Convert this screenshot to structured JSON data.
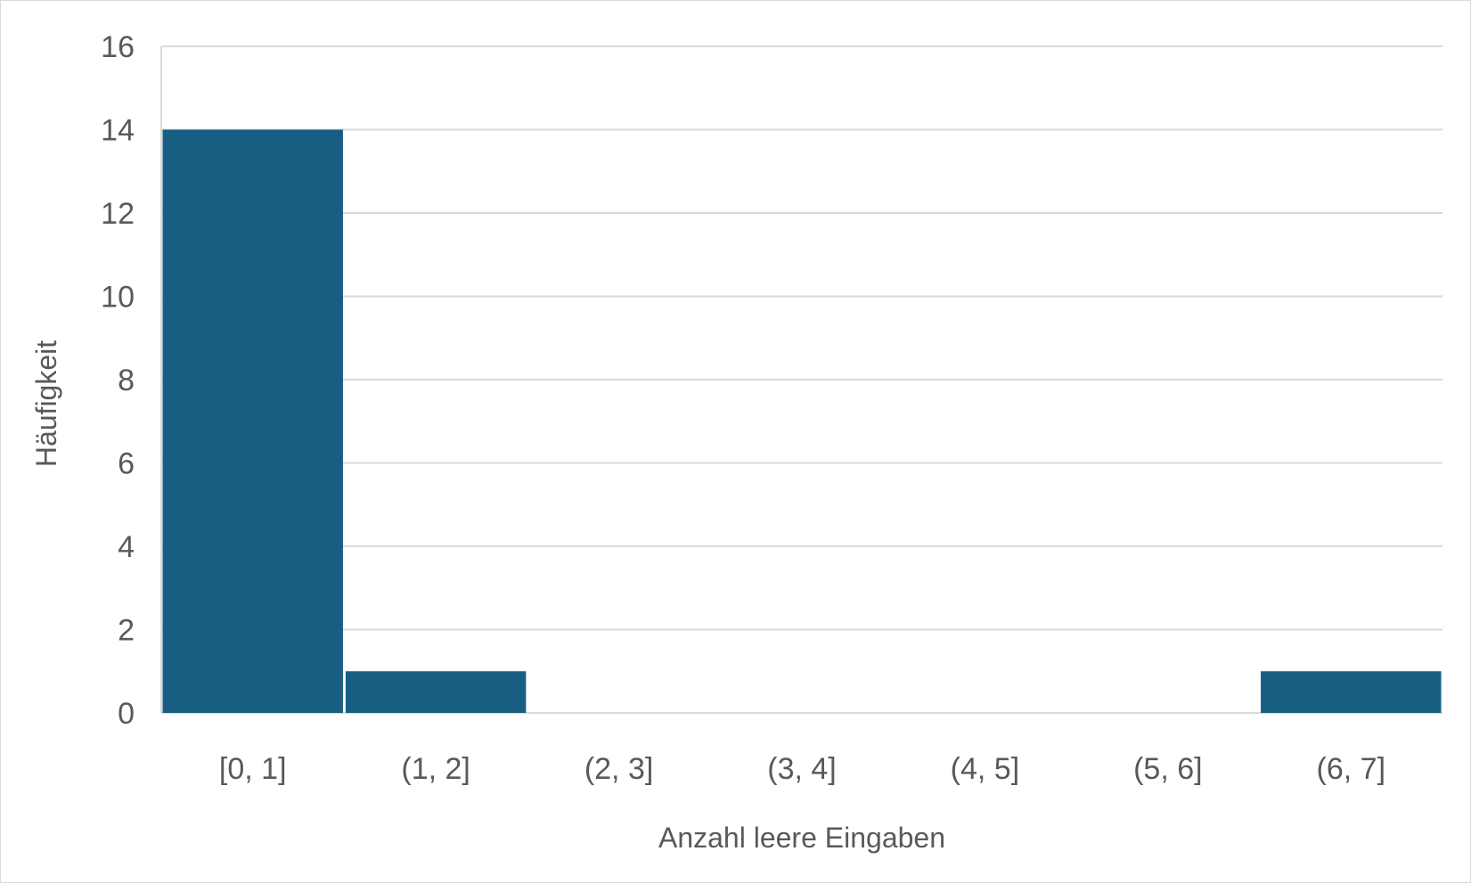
{
  "chart_data": {
    "type": "bar",
    "title": "",
    "xlabel": "Anzahl leere Eingaben",
    "ylabel": "Häufigkeit",
    "categories": [
      "[0, 1]",
      "(1, 2]",
      "(2, 3]",
      "(3, 4]",
      "(4, 5]",
      "(5, 6]",
      "(6, 7]"
    ],
    "values": [
      14,
      1,
      0,
      0,
      0,
      0,
      1
    ],
    "ylim": [
      0,
      16
    ],
    "yticks": [
      0,
      2,
      4,
      6,
      8,
      10,
      12,
      14,
      16
    ],
    "grid": true,
    "legend": "none",
    "colors": {
      "bar": "#175e82",
      "grid": "#d9d9d9",
      "text": "#595959"
    }
  }
}
